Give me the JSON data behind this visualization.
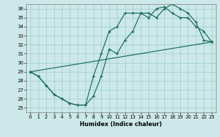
{
  "bg_color": "#cce8e8",
  "grid_color": "#99cccc",
  "line_color": "#1a6b5a",
  "xlabel": "Humidex (Indice chaleur)",
  "xlim": [
    -0.5,
    23.5
  ],
  "ylim": [
    24.5,
    36.5
  ],
  "xticks": [
    0,
    1,
    2,
    3,
    4,
    5,
    6,
    7,
    8,
    9,
    10,
    11,
    12,
    13,
    14,
    15,
    16,
    17,
    18,
    19,
    20,
    21,
    22,
    23
  ],
  "yticks": [
    25,
    26,
    27,
    28,
    29,
    30,
    31,
    32,
    33,
    34,
    35,
    36
  ],
  "curve1_x": [
    0,
    1,
    2,
    3,
    4,
    5,
    6,
    7,
    8,
    9,
    10,
    11,
    12,
    13,
    14,
    15,
    16,
    17,
    18,
    19,
    20,
    21,
    22,
    23
  ],
  "curve1_y": [
    29.0,
    28.5,
    27.5,
    26.5,
    26.0,
    25.5,
    25.3,
    25.3,
    28.5,
    31.0,
    33.5,
    34.0,
    35.5,
    35.5,
    35.5,
    35.0,
    36.0,
    36.2,
    35.5,
    35.0,
    35.0,
    34.0,
    33.5,
    32.3
  ],
  "curve2_x": [
    0,
    1,
    2,
    3,
    4,
    5,
    6,
    7,
    8,
    9,
    10,
    11,
    12,
    13,
    14,
    15,
    16,
    17,
    18,
    19,
    20,
    21,
    22,
    23
  ],
  "curve2_y": [
    29.0,
    28.5,
    27.5,
    26.5,
    26.0,
    25.5,
    25.3,
    25.3,
    26.3,
    28.5,
    31.5,
    31.0,
    32.5,
    33.5,
    35.5,
    35.5,
    35.0,
    36.0,
    36.5,
    36.0,
    35.5,
    34.5,
    32.5,
    32.3
  ],
  "curve3_x": [
    0,
    23
  ],
  "curve3_y": [
    29.0,
    32.3
  ]
}
